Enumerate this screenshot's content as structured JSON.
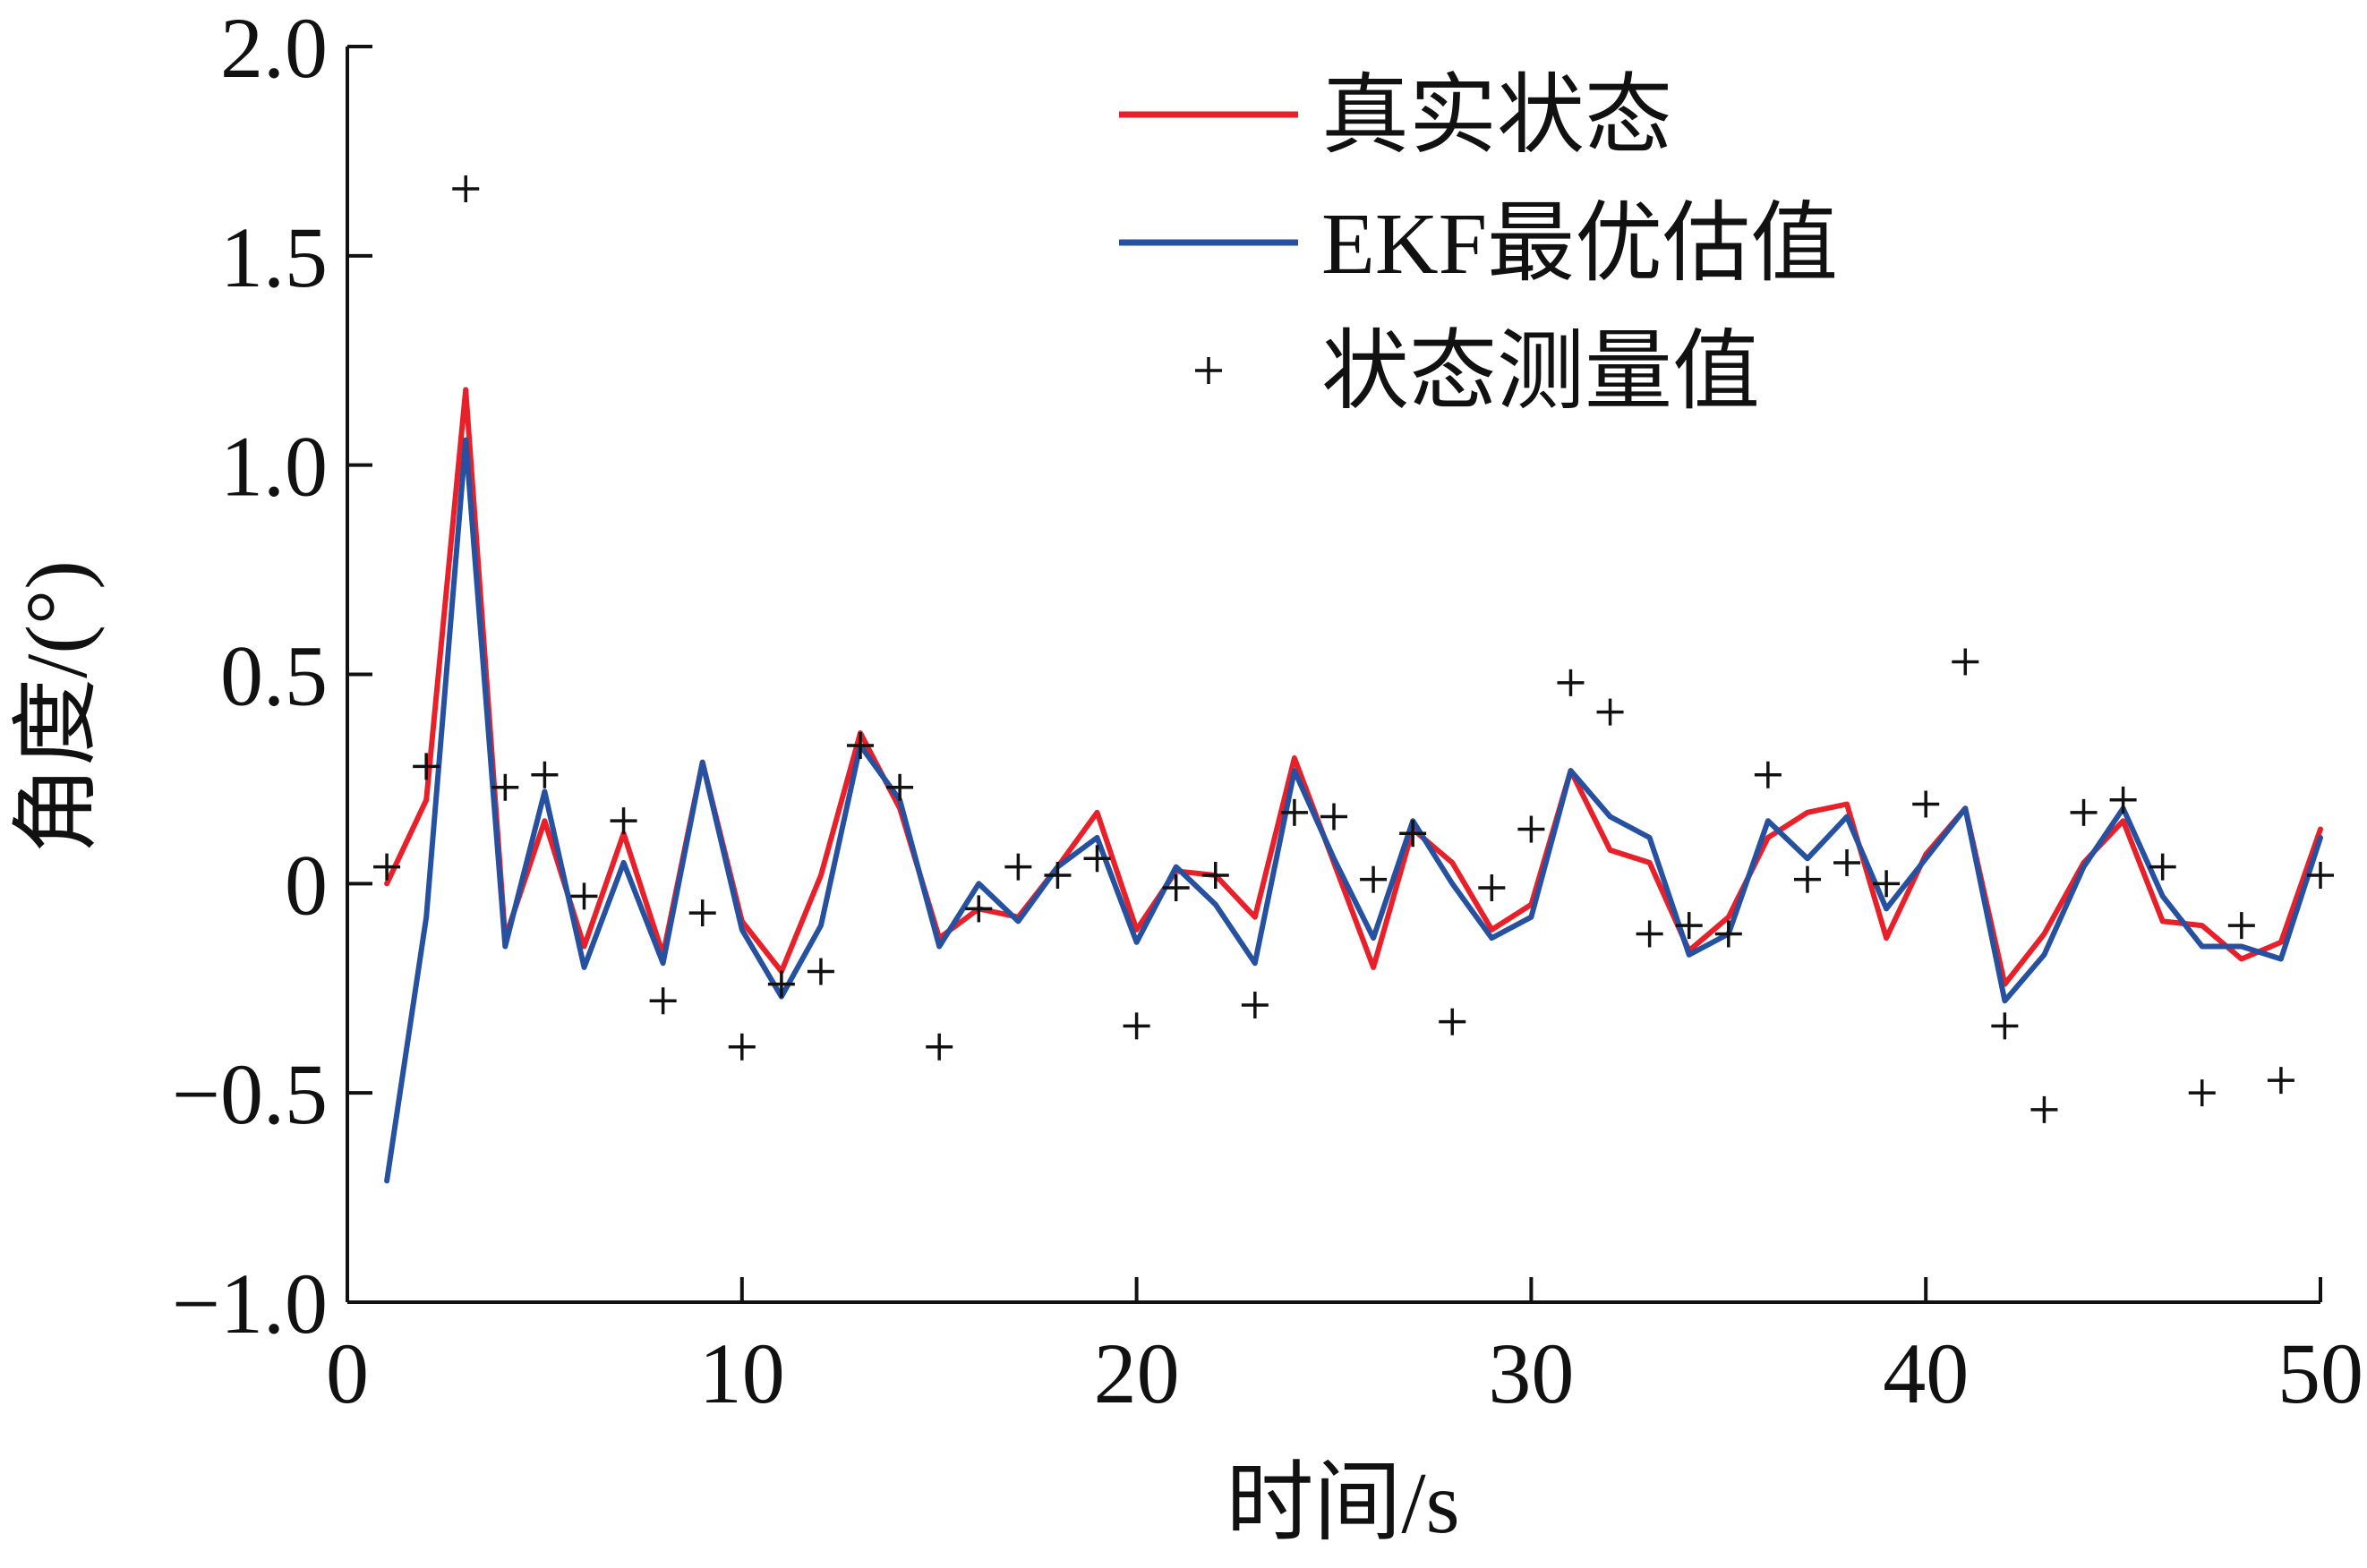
{
  "chart_data": {
    "type": "line",
    "xlabel": "时间/s",
    "ylabel": "角度/(°)",
    "xlim": [
      0,
      50
    ],
    "ylim": [
      -1.0,
      2.0
    ],
    "xticks": [
      0,
      10,
      20,
      30,
      40,
      50
    ],
    "yticks": [
      2.0,
      1.5,
      1.0,
      0.5,
      0,
      -0.5,
      -1.0
    ],
    "xtick_labels": [
      "0",
      "10",
      "20",
      "30",
      "40",
      "50"
    ],
    "ytick_labels": [
      "2.0",
      "1.5",
      "1.0",
      "0.5",
      "0",
      "−0.5",
      "−1.0"
    ],
    "grid": false,
    "legend_position": "top-right",
    "x": [
      1,
      2,
      3,
      4,
      5,
      6,
      7,
      8,
      9,
      10,
      11,
      12,
      13,
      14,
      15,
      16,
      17,
      18,
      19,
      20,
      21,
      22,
      23,
      24,
      25,
      26,
      27,
      28,
      29,
      30,
      31,
      32,
      33,
      34,
      35,
      36,
      37,
      38,
      39,
      40,
      41,
      42,
      43,
      44,
      45,
      46,
      47,
      48,
      49,
      50
    ],
    "series": [
      {
        "name": "真实状态",
        "style": "line",
        "color": "#e8202a",
        "values": [
          0.0,
          0.2,
          1.18,
          -0.13,
          0.15,
          -0.15,
          0.12,
          -0.17,
          0.29,
          -0.09,
          -0.21,
          0.02,
          0.36,
          0.18,
          -0.13,
          -0.06,
          -0.08,
          0.04,
          0.17,
          -0.11,
          0.03,
          0.02,
          -0.08,
          0.3,
          0.05,
          -0.2,
          0.13,
          0.05,
          -0.11,
          -0.05,
          0.27,
          0.08,
          0.05,
          -0.16,
          -0.08,
          0.11,
          0.17,
          0.19,
          -0.13,
          0.07,
          0.18,
          -0.24,
          -0.12,
          0.05,
          0.15,
          -0.09,
          -0.1,
          -0.18,
          -0.14,
          0.13
        ]
      },
      {
        "name": "EKF最优估值",
        "style": "line",
        "color": "#2650a0",
        "values": [
          -0.71,
          -0.08,
          1.06,
          -0.15,
          0.22,
          -0.2,
          0.05,
          -0.19,
          0.29,
          -0.11,
          -0.27,
          -0.1,
          0.33,
          0.2,
          -0.15,
          0.0,
          -0.09,
          0.04,
          0.11,
          -0.14,
          0.04,
          -0.05,
          -0.19,
          0.27,
          0.06,
          -0.13,
          0.15,
          0.0,
          -0.13,
          -0.08,
          0.27,
          0.16,
          0.11,
          -0.17,
          -0.12,
          0.15,
          0.06,
          0.16,
          -0.06,
          0.06,
          0.18,
          -0.28,
          -0.17,
          0.04,
          0.18,
          -0.03,
          -0.15,
          -0.15,
          -0.18,
          0.11
        ]
      },
      {
        "name": "状态测量值",
        "style": "markers",
        "marker": "+",
        "color": "#111111",
        "values": [
          0.04,
          0.28,
          1.66,
          0.23,
          0.26,
          -0.03,
          0.15,
          -0.28,
          -0.07,
          -0.39,
          -0.24,
          -0.21,
          0.33,
          0.23,
          -0.39,
          -0.06,
          0.04,
          0.02,
          0.06,
          -0.34,
          -0.01,
          0.02,
          -0.29,
          0.17,
          0.16,
          0.01,
          0.12,
          -0.33,
          -0.01,
          0.13,
          0.48,
          0.41,
          -0.12,
          -0.1,
          -0.12,
          0.26,
          0.01,
          0.05,
          0.0,
          0.19,
          0.53,
          -0.34,
          -0.54,
          0.17,
          0.2,
          0.04,
          -0.5,
          -0.1,
          -0.47,
          0.02
        ]
      }
    ]
  }
}
